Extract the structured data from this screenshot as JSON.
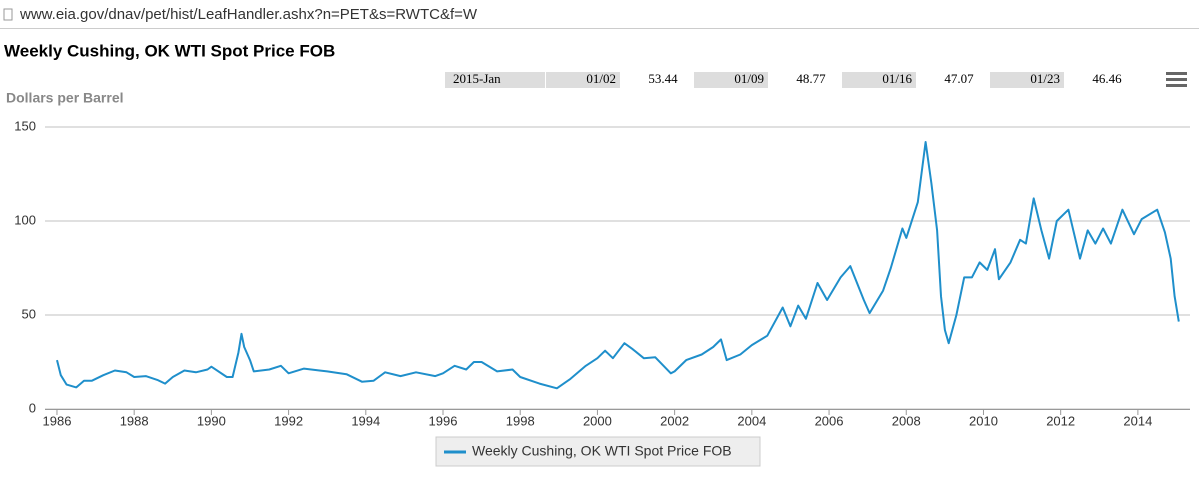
{
  "url": "www.eia.gov/dnav/pet/hist/LeafHandler.ashx?n=PET&s=RWTC&f=W",
  "period_table": {
    "period": "2015-Jan",
    "entries": [
      {
        "date": "01/02",
        "value": 53.44
      },
      {
        "date": "01/09",
        "value": 48.77
      },
      {
        "date": "01/16",
        "value": 47.07
      },
      {
        "date": "01/23",
        "value": 46.46
      }
    ]
  },
  "chart_data": {
    "type": "line",
    "title": "Weekly Cushing, OK WTI Spot Price FOB",
    "y_label": "Dollars per Barrel",
    "xlim": [
      1985.69,
      2015.35
    ],
    "xticks": [
      1986,
      1988,
      1990,
      1992,
      1994,
      1996,
      1998,
      2000,
      2002,
      2004,
      2006,
      2008,
      2010,
      2012,
      2014
    ],
    "ylim": [
      0,
      150
    ],
    "yticks": [
      0,
      50,
      100,
      150
    ],
    "grid": true,
    "series": [
      {
        "name": "Weekly Cushing, OK WTI Spot Price FOB",
        "color": "#1f8fcb",
        "x": [
          1986.0,
          1986.1,
          1986.25,
          1986.5,
          1986.7,
          1986.9,
          1987.2,
          1987.5,
          1987.8,
          1988.0,
          1988.3,
          1988.6,
          1988.8,
          1989.0,
          1989.3,
          1989.6,
          1989.9,
          1990.0,
          1990.4,
          1990.55,
          1990.7,
          1990.78,
          1990.85,
          1991.0,
          1991.1,
          1991.5,
          1991.8,
          1992.0,
          1992.4,
          1992.8,
          1993.0,
          1993.5,
          1993.9,
          1994.2,
          1994.5,
          1994.9,
          1995.3,
          1995.8,
          1996.0,
          1996.3,
          1996.6,
          1996.8,
          1997.0,
          1997.4,
          1997.8,
          1998.0,
          1998.5,
          1998.95,
          1999.3,
          1999.7,
          2000.0,
          2000.2,
          2000.4,
          2000.7,
          2000.9,
          2001.2,
          2001.5,
          2001.9,
          2002.0,
          2002.3,
          2002.7,
          2003.0,
          2003.2,
          2003.35,
          2003.7,
          2004.0,
          2004.4,
          2004.8,
          2005.0,
          2005.2,
          2005.4,
          2005.7,
          2005.95,
          2006.3,
          2006.55,
          2006.9,
          2007.05,
          2007.4,
          2007.6,
          2007.9,
          2008.0,
          2008.3,
          2008.5,
          2008.65,
          2008.8,
          2008.9,
          2009.0,
          2009.1,
          2009.3,
          2009.5,
          2009.7,
          2009.9,
          2010.1,
          2010.3,
          2010.4,
          2010.7,
          2010.95,
          2011.1,
          2011.3,
          2011.5,
          2011.7,
          2011.9,
          2012.2,
          2012.5,
          2012.7,
          2012.9,
          2013.1,
          2013.3,
          2013.6,
          2013.9,
          2014.1,
          2014.5,
          2014.7,
          2014.85,
          2014.95,
          2015.06
        ],
        "values": [
          26,
          18,
          13,
          11.5,
          15,
          15,
          18,
          20.5,
          19.5,
          17,
          17.5,
          15.5,
          13.5,
          17,
          20.5,
          19.5,
          21,
          22.5,
          17,
          17,
          30,
          40,
          33,
          26,
          20,
          21,
          23,
          19,
          21.5,
          20.5,
          20,
          18.5,
          14.5,
          15,
          19.5,
          17.5,
          19.5,
          17.5,
          19,
          23,
          21,
          25,
          25,
          20,
          21,
          17,
          13.5,
          11,
          16,
          23,
          27,
          31,
          27,
          35,
          32,
          27,
          27.5,
          19,
          20,
          26,
          29,
          33,
          37,
          26,
          29,
          34,
          39,
          54,
          44,
          55,
          48,
          67,
          58,
          70,
          76,
          58,
          51,
          63,
          75,
          96,
          91,
          110,
          142,
          120,
          95,
          60,
          42,
          35,
          50,
          70,
          70,
          78,
          74,
          85,
          69,
          78,
          90,
          88,
          112,
          95,
          80,
          100,
          106,
          80,
          95,
          88,
          96,
          88,
          106,
          93,
          101,
          106,
          94,
          80,
          60,
          46.5
        ]
      }
    ]
  }
}
